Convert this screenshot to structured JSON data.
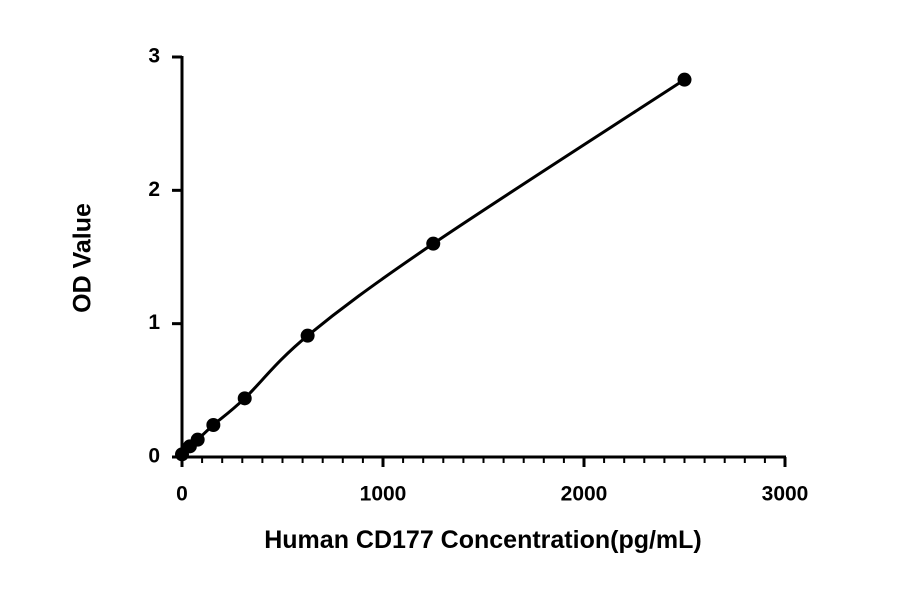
{
  "chart_data": {
    "type": "scatter-line",
    "x_label": "Human CD177 Concentration(pg/mL)",
    "y_label": "OD Value",
    "x": [
      0,
      39,
      78,
      156,
      312,
      625,
      1250,
      2500
    ],
    "series": [
      {
        "color": "#000000",
        "values": [
          0.02,
          0.08,
          0.13,
          0.24,
          0.44,
          0.91,
          1.6,
          2.83
        ]
      }
    ],
    "xlim": [
      0,
      3000
    ],
    "xticks": [
      0,
      1000,
      2000,
      3000
    ],
    "ylim": [
      0,
      3
    ],
    "yticks": [
      0,
      1,
      2,
      3
    ],
    "x_minor_ticks_per_major": 10,
    "grid": false
  }
}
